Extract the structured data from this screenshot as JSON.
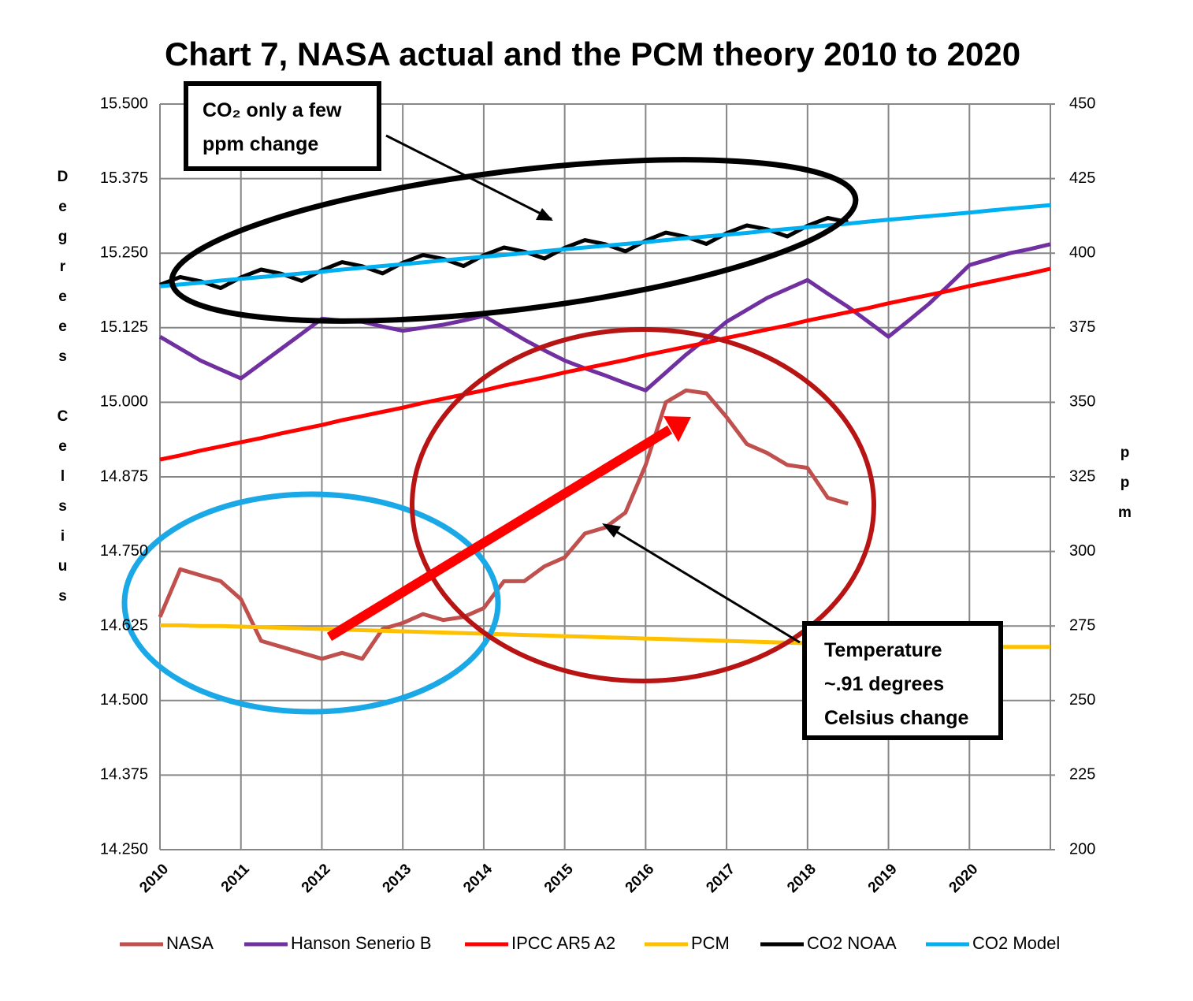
{
  "chart_data": {
    "type": "line",
    "title": "Chart 7, NASA actual and the PCM theory 2010 to 2020",
    "y_label": "Degrees Celsius",
    "y2_label": "ppm",
    "annotations": [
      "CO₂ only a few ppm change",
      "Temperature ~.91 degrees Celsius change"
    ],
    "x": [
      2010,
      2010.25,
      2010.5,
      2010.75,
      2011,
      2011.25,
      2011.5,
      2011.75,
      2012,
      2012.25,
      2012.5,
      2012.75,
      2013,
      2013.25,
      2013.5,
      2013.75,
      2014,
      2014.25,
      2014.5,
      2014.75,
      2015,
      2015.25,
      2015.5,
      2015.75,
      2016,
      2016.25,
      2016.5,
      2016.75,
      2017,
      2017.25,
      2017.5,
      2017.75,
      2018,
      2018.25,
      2018.5,
      2018.75,
      2019,
      2019.25,
      2019.5,
      2019.75,
      2020,
      2020.25,
      2020.5,
      2020.75,
      2021
    ],
    "xlim": [
      2010,
      2021
    ],
    "xticks": [
      2010,
      2011,
      2012,
      2013,
      2014,
      2015,
      2016,
      2017,
      2018,
      2019,
      2020
    ],
    "ylim": [
      14.25,
      15.5
    ],
    "yticks": [
      {
        "value": 14.25,
        "label": "14.250"
      },
      14.375,
      {
        "value": 14.5,
        "label": "14.500"
      },
      14.625,
      {
        "value": 14.75,
        "label": "14.750"
      },
      14.875,
      {
        "value": 15,
        "label": "15.000"
      },
      15.125,
      {
        "value": 15.25,
        "label": "15.250"
      },
      15.375,
      {
        "value": 15.5,
        "label": "15.500"
      }
    ],
    "y2lim": [
      200,
      450
    ],
    "y2ticks": [
      200,
      225,
      250,
      275,
      300,
      325,
      350,
      375,
      400,
      425,
      450
    ],
    "grid": true,
    "legend": "bottom",
    "series": [
      {
        "name": "NASA",
        "color": "#c0504d",
        "values": [
          14.64,
          14.72,
          14.71,
          14.7,
          14.67,
          14.6,
          14.59,
          14.58,
          14.57,
          14.58,
          14.57,
          14.62,
          14.63,
          14.645,
          14.635,
          14.64,
          14.655,
          14.7,
          14.7,
          14.725,
          14.74,
          14.78,
          14.79,
          14.815,
          14.895,
          15.0,
          15.02,
          15.015,
          14.975,
          14.93,
          14.915,
          14.895,
          14.89,
          14.84,
          14.83,
          null,
          null,
          null,
          null,
          null,
          null,
          null,
          null,
          null,
          null
        ]
      },
      {
        "name": "Hanson Senerio B",
        "color": "#7030a0",
        "values": [
          15.11,
          15.09,
          15.07,
          15.055,
          15.04,
          15.065,
          15.09,
          15.115,
          15.14,
          15.137,
          15.135,
          15.127,
          15.12,
          15.125,
          15.13,
          15.137,
          15.145,
          15.125,
          15.105,
          15.087,
          15.07,
          15.057,
          15.045,
          15.032,
          15.02,
          15.05,
          15.08,
          15.107,
          15.135,
          15.155,
          15.175,
          15.19,
          15.205,
          15.182,
          15.16,
          15.135,
          15.11,
          15.137,
          15.165,
          15.197,
          15.23,
          15.24,
          15.25,
          15.257,
          15.265
        ]
      },
      {
        "name": "IPCC AR5 A2",
        "color": "#ff0000",
        "values": [
          14.904,
          14.911,
          14.919,
          14.926,
          14.933,
          14.94,
          14.948,
          14.955,
          14.962,
          14.97,
          14.977,
          14.984,
          14.991,
          14.999,
          15.006,
          15.013,
          15.02,
          15.028,
          15.035,
          15.042,
          15.05,
          15.057,
          15.064,
          15.071,
          15.079,
          15.086,
          15.093,
          15.1,
          15.108,
          15.115,
          15.122,
          15.129,
          15.137,
          15.144,
          15.151,
          15.158,
          15.166,
          15.173,
          15.18,
          15.187,
          15.195,
          15.202,
          15.209,
          15.216,
          15.224
        ]
      },
      {
        "name": "PCM",
        "color": "#ffc000",
        "values": [
          14.626,
          14.626,
          14.625,
          14.625,
          14.624,
          14.623,
          14.622,
          14.621,
          14.62,
          14.619,
          14.618,
          14.617,
          14.616,
          14.615,
          14.614,
          14.613,
          14.612,
          14.611,
          14.61,
          14.609,
          14.608,
          14.607,
          14.606,
          14.605,
          14.604,
          14.603,
          14.602,
          14.601,
          14.6,
          14.599,
          14.598,
          14.597,
          14.596,
          14.595,
          14.594,
          14.593,
          14.593,
          14.592,
          14.592,
          14.591,
          14.591,
          14.59,
          14.59,
          14.59,
          14.59
        ]
      },
      {
        "name": "CO2 NOAA",
        "color": "#000000",
        "axis": "y2",
        "values": [
          389.4,
          392.0,
          390.6,
          388.3,
          391.9,
          394.5,
          393.1,
          390.7,
          394.3,
          397.0,
          395.6,
          393.2,
          396.8,
          399.4,
          398.1,
          395.7,
          399.3,
          401.9,
          400.5,
          398.2,
          401.8,
          404.4,
          403.0,
          400.6,
          404.2,
          406.9,
          405.5,
          403.1,
          406.7,
          409.3,
          408.0,
          405.6,
          409.2,
          411.8,
          410.4,
          null,
          null,
          null,
          null,
          null,
          null,
          null,
          null,
          null,
          null
        ]
      },
      {
        "name": "CO2 Model",
        "color": "#00b0f0",
        "axis": "y2",
        "values": [
          388.9,
          389.5,
          390.1,
          390.8,
          391.4,
          392.0,
          392.6,
          393.2,
          393.8,
          394.5,
          395.1,
          395.7,
          396.3,
          396.9,
          397.6,
          398.2,
          398.8,
          399.4,
          400.0,
          400.7,
          401.3,
          401.9,
          402.5,
          403.1,
          403.7,
          404.4,
          405.0,
          405.6,
          406.2,
          406.8,
          407.5,
          408.1,
          408.7,
          409.3,
          409.9,
          410.6,
          411.2,
          411.8,
          412.4,
          413.0,
          413.6,
          414.3,
          414.9,
          415.5,
          416.1
        ]
      }
    ]
  }
}
